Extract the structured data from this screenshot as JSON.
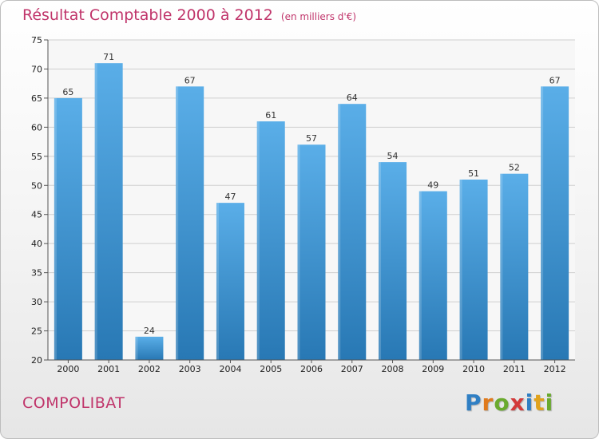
{
  "header": {
    "title": "Résultat Comptable 2000 à 2012",
    "unit": "(en milliers d'€)"
  },
  "footer": {
    "commune": "COMPOLIBAT",
    "logo_text": "Proxiti"
  },
  "colors": {
    "title": "#c0346a",
    "bar_top": "#5aaee8",
    "bar_bottom": "#2878b4",
    "grid": "#cfcfcf"
  },
  "chart_data": {
    "type": "bar",
    "title": "Résultat Comptable 2000 à 2012",
    "subtitle": "(en milliers d'€)",
    "xlabel": "",
    "ylabel": "",
    "categories": [
      "2000",
      "2001",
      "2002",
      "2003",
      "2004",
      "2005",
      "2006",
      "2007",
      "2008",
      "2009",
      "2010",
      "2011",
      "2012"
    ],
    "values": [
      65,
      71,
      24,
      67,
      47,
      61,
      57,
      64,
      54,
      49,
      51,
      52,
      67
    ],
    "ylim": [
      20,
      75
    ],
    "yticks": [
      20,
      25,
      30,
      35,
      40,
      45,
      50,
      55,
      60,
      65,
      70,
      75
    ],
    "grid": true,
    "legend": "none"
  }
}
